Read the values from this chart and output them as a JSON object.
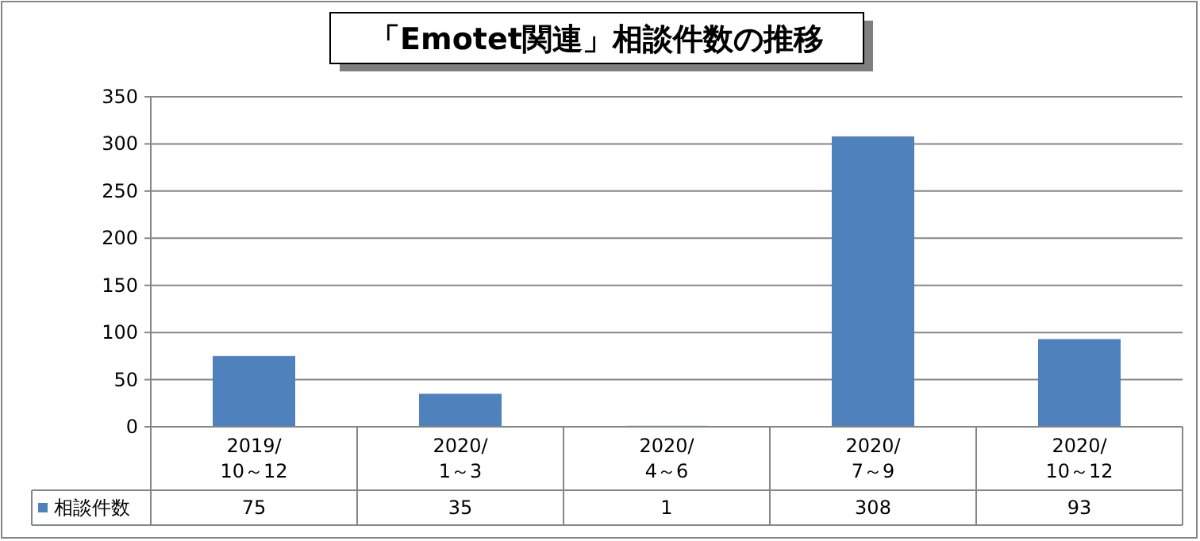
{
  "chart_data": {
    "type": "bar",
    "title": "「Emotet関連」相談件数の推移",
    "categories": [
      "2019/10～12",
      "2020/1～3",
      "2020/4～6",
      "2020/7～9",
      "2020/10～12"
    ],
    "series": [
      {
        "name": "相談件数",
        "color": "#4f81bd",
        "values": [
          75,
          35,
          1,
          308,
          93
        ]
      }
    ],
    "ylim": [
      0,
      350
    ],
    "yticks": [
      0,
      50,
      100,
      150,
      200,
      250,
      300,
      350
    ],
    "grid": "y",
    "data_labels": true,
    "legend": "bottom"
  }
}
